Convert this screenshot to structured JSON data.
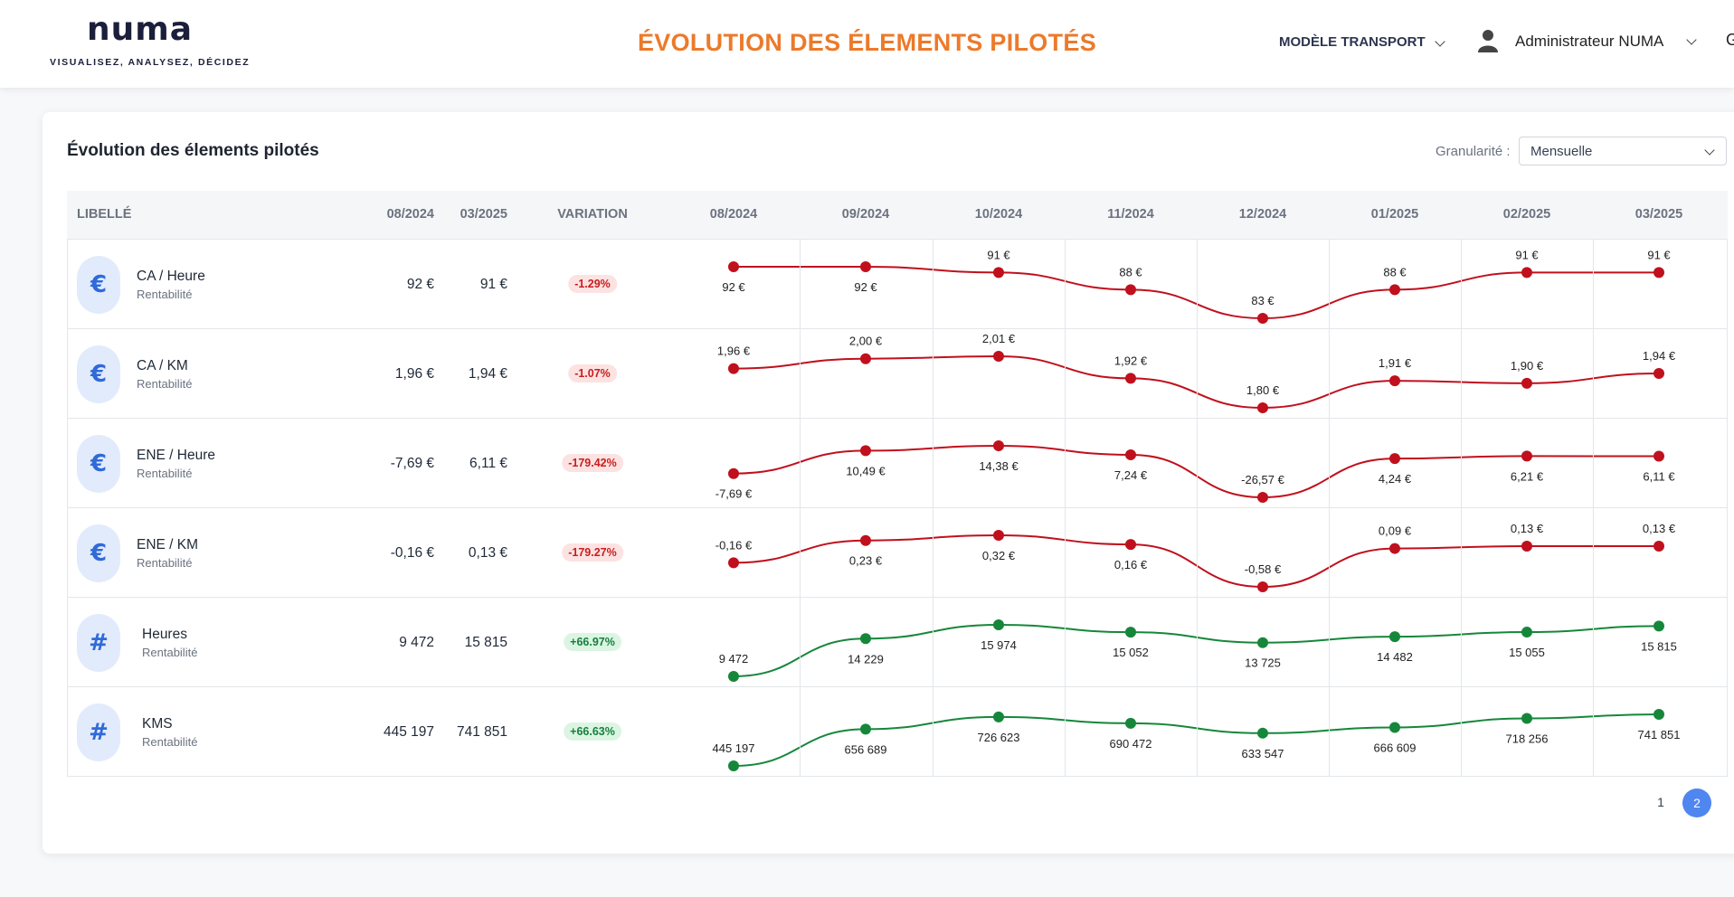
{
  "header": {
    "logo_text": "numa",
    "logo_tagline": "VISUALISEZ, ANALYSEZ, DÉCIDEZ",
    "page_title": "ÉVOLUTION DES ÉLEMENTS PILOTÉS",
    "model_select": "MODÈLE TRANSPORT",
    "user_name": "Administrateur NUMA",
    "edge_glyph": "G",
    "accent_color": "#ec7a2a"
  },
  "card": {
    "title": "Évolution des élements pilotés",
    "granularity_label": "Granularité :",
    "granularity_value": "Mensuelle"
  },
  "table": {
    "headers": {
      "label": "LIBELLÉ",
      "start": "08/2024",
      "end": "03/2025",
      "variation": "VARIATION"
    },
    "months": [
      "08/2024",
      "09/2024",
      "10/2024",
      "11/2024",
      "12/2024",
      "01/2025",
      "02/2025",
      "03/2025"
    ],
    "rows": [
      {
        "icon": "euro-icon",
        "symbol": "€",
        "label": "CA / Heure",
        "sub": "Rentabilité",
        "start": "92 €",
        "end": "91 €",
        "variation": "-1.29%",
        "trend": "neg",
        "values": [
          92,
          92,
          91,
          88,
          83,
          88,
          91,
          91
        ],
        "point_labels": [
          "92 €",
          "92 €",
          "91 €",
          "88 €",
          "83 €",
          "88 €",
          "91 €",
          "91 €"
        ],
        "label_pos": [
          "below",
          "below",
          "above",
          "above",
          "above",
          "above",
          "above",
          "above"
        ]
      },
      {
        "icon": "euro-icon",
        "symbol": "€",
        "label": "CA / KM",
        "sub": "Rentabilité",
        "start": "1,96 €",
        "end": "1,94 €",
        "variation": "-1.07%",
        "trend": "neg",
        "values": [
          1.96,
          2.0,
          2.01,
          1.92,
          1.8,
          1.91,
          1.9,
          1.94
        ],
        "point_labels": [
          "1,96 €",
          "2,00 €",
          "2,01 €",
          "1,92 €",
          "1,80 €",
          "1,91 €",
          "1,90 €",
          "1,94 €"
        ],
        "label_pos": [
          "above",
          "above",
          "above",
          "above",
          "above",
          "above",
          "above",
          "above"
        ]
      },
      {
        "icon": "euro-icon",
        "symbol": "€",
        "label": "ENE / Heure",
        "sub": "Rentabilité",
        "start": "-7,69 €",
        "end": "6,11 €",
        "variation": "-179.42%",
        "trend": "neg",
        "values": [
          -7.69,
          10.49,
          14.38,
          7.24,
          -26.57,
          4.24,
          6.21,
          6.11
        ],
        "point_labels": [
          "-7,69 €",
          "10,49 €",
          "14,38 €",
          "7,24 €",
          "-26,57 €",
          "4,24 €",
          "6,21 €",
          "6,11 €"
        ],
        "label_pos": [
          "below",
          "below",
          "below",
          "below",
          "above",
          "below",
          "below",
          "below"
        ]
      },
      {
        "icon": "euro-icon",
        "symbol": "€",
        "label": "ENE / KM",
        "sub": "Rentabilité",
        "start": "-0,16 €",
        "end": "0,13 €",
        "variation": "-179.27%",
        "trend": "neg",
        "values": [
          -0.16,
          0.23,
          0.32,
          0.16,
          -0.58,
          0.09,
          0.13,
          0.13
        ],
        "point_labels": [
          "-0,16 €",
          "0,23 €",
          "0,32 €",
          "0,16 €",
          "-0,58 €",
          "0,09 €",
          "0,13 €",
          "0,13 €"
        ],
        "label_pos": [
          "above",
          "below",
          "below",
          "below",
          "above",
          "above",
          "above",
          "above"
        ]
      },
      {
        "icon": "hash-icon",
        "symbol": "#",
        "label": "Heures",
        "sub": "Rentabilité",
        "start": "9 472",
        "end": "15 815",
        "variation": "+66.97%",
        "trend": "pos",
        "values": [
          9472,
          14229,
          15974,
          15052,
          13725,
          14482,
          15055,
          15815
        ],
        "point_labels": [
          "9 472",
          "14 229",
          "15 974",
          "15 052",
          "13 725",
          "14 482",
          "15 055",
          "15 815"
        ],
        "label_pos": [
          "above",
          "below",
          "below",
          "below",
          "below",
          "below",
          "below",
          "below"
        ]
      },
      {
        "icon": "hash-icon",
        "symbol": "#",
        "label": "KMS",
        "sub": "Rentabilité",
        "start": "445 197",
        "end": "741 851",
        "variation": "+66.63%",
        "trend": "pos",
        "values": [
          445197,
          656689,
          726623,
          690472,
          633547,
          666609,
          718256,
          741851
        ],
        "point_labels": [
          "445 197",
          "656 689",
          "726 623",
          "690 472",
          "633 547",
          "666 609",
          "718 256",
          "741 851"
        ],
        "label_pos": [
          "above",
          "below",
          "below",
          "below",
          "below",
          "below",
          "below",
          "below"
        ]
      }
    ]
  },
  "colors": {
    "neg_line": "#c0101d",
    "pos_line": "#16873a",
    "active_page": "#4f86f0"
  },
  "pagination": {
    "pages": [
      "1",
      "2"
    ],
    "active": "2"
  }
}
